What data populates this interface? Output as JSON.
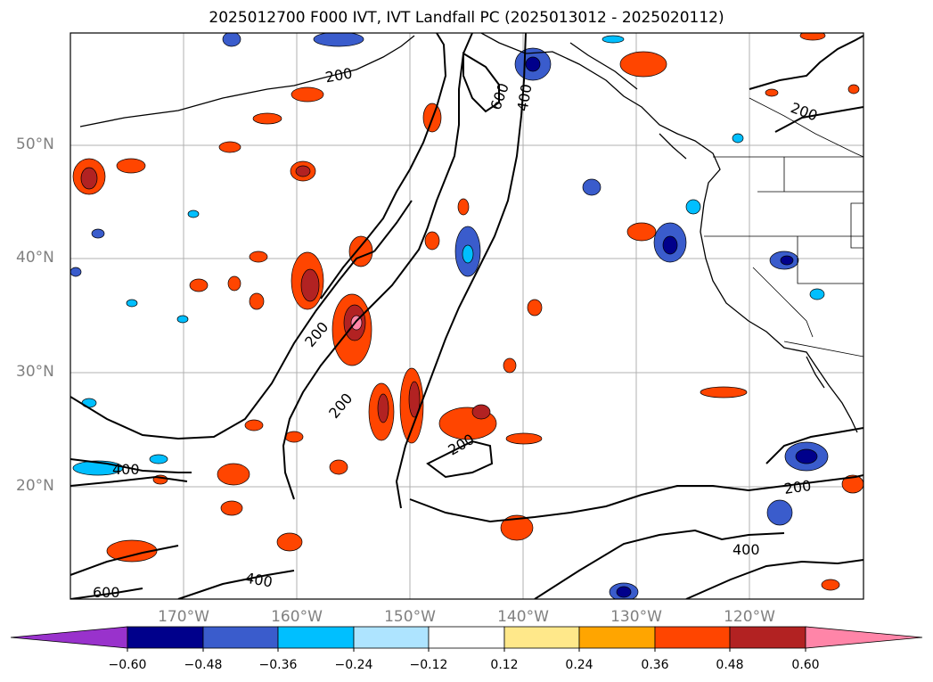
{
  "title": "2025012700 F000 IVT, IVT Landfall PC (2025013012 - 2025020112)",
  "lat_labels": [
    "50°N",
    "40°N",
    "30°N",
    "20°N"
  ],
  "lon_labels": [
    "170°W",
    "160°W",
    "150°W",
    "140°W",
    "130°W",
    "120°W"
  ],
  "contour_labels": [
    "200",
    "600",
    "400",
    "200",
    "200",
    "200",
    "200",
    "400",
    "200",
    "400",
    "400",
    "600"
  ],
  "colorbar": {
    "ticks": [
      "−0.60",
      "−0.48",
      "−0.36",
      "−0.24",
      "−0.12",
      "0.12",
      "0.24",
      "0.36",
      "0.48",
      "0.60"
    ],
    "colors": [
      "#9932cc",
      "#00008b",
      "#3a5ccc",
      "#00bfff",
      "#aee4ff",
      "#ffffff",
      "#ffe88a",
      "#ffa500",
      "#ff4500",
      "#b22222",
      "#ff85a8"
    ]
  }
}
